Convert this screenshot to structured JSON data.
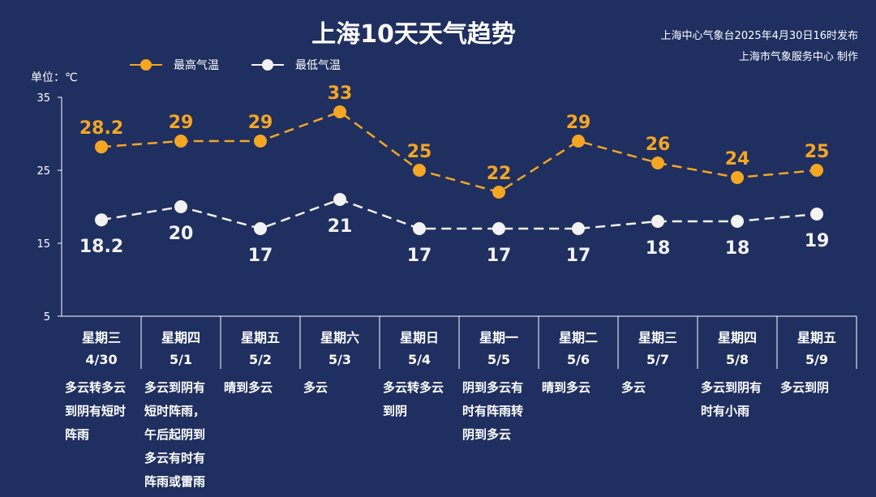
{
  "header": {
    "title": "上海10天天气趋势",
    "source_line1": "上海中心气象台2025年4月30日16时发布",
    "source_line2": "上海市气象服务中心 制作"
  },
  "colors": {
    "background": "#1f2f60",
    "high": "#f5a623",
    "low": "#f2f2f2",
    "axis": "#ffffff"
  },
  "chart_data": {
    "type": "line",
    "title": "上海10天天气趋势",
    "ylabel": "单位：℃",
    "ylim": [
      5,
      35
    ],
    "yticks": [
      5,
      15,
      25,
      35
    ],
    "grid": false,
    "legend_position": "top-left",
    "categories": [
      "4/30",
      "5/1",
      "5/2",
      "5/3",
      "5/4",
      "5/5",
      "5/6",
      "5/7",
      "5/8",
      "5/9"
    ],
    "weekdays": [
      "星期三",
      "星期四",
      "星期五",
      "星期六",
      "星期日",
      "星期一",
      "星期二",
      "星期三",
      "星期四",
      "星期五"
    ],
    "weather": [
      [
        "多云转多云",
        "到阴有短时",
        "阵雨"
      ],
      [
        "多云到阴有",
        "短时阵雨，",
        "午后起阴到",
        "多云有时有",
        "阵雨或雷雨"
      ],
      [
        "晴到多云"
      ],
      [
        "多云"
      ],
      [
        "多云转多云",
        "到阴"
      ],
      [
        "阴到多云有",
        "时有阵雨转",
        "阴到多云"
      ],
      [
        "晴到多云"
      ],
      [
        "多云"
      ],
      [
        "多云到阴有",
        "时有小雨"
      ],
      [
        "多云到阴"
      ]
    ],
    "series": [
      {
        "name": "最高气温",
        "labels": [
          "28.2",
          "29",
          "29",
          "33",
          "25",
          "22",
          "29",
          "26",
          "24",
          "25"
        ],
        "values": [
          28.2,
          29,
          29,
          33,
          25,
          22,
          29,
          26,
          24,
          25
        ]
      },
      {
        "name": "最低气温",
        "labels": [
          "18.2",
          "20",
          "17",
          "21",
          "17",
          "17",
          "17",
          "18",
          "18",
          "19"
        ],
        "values": [
          18.2,
          20,
          17,
          21,
          17,
          17,
          17,
          18,
          18,
          19
        ]
      }
    ]
  }
}
